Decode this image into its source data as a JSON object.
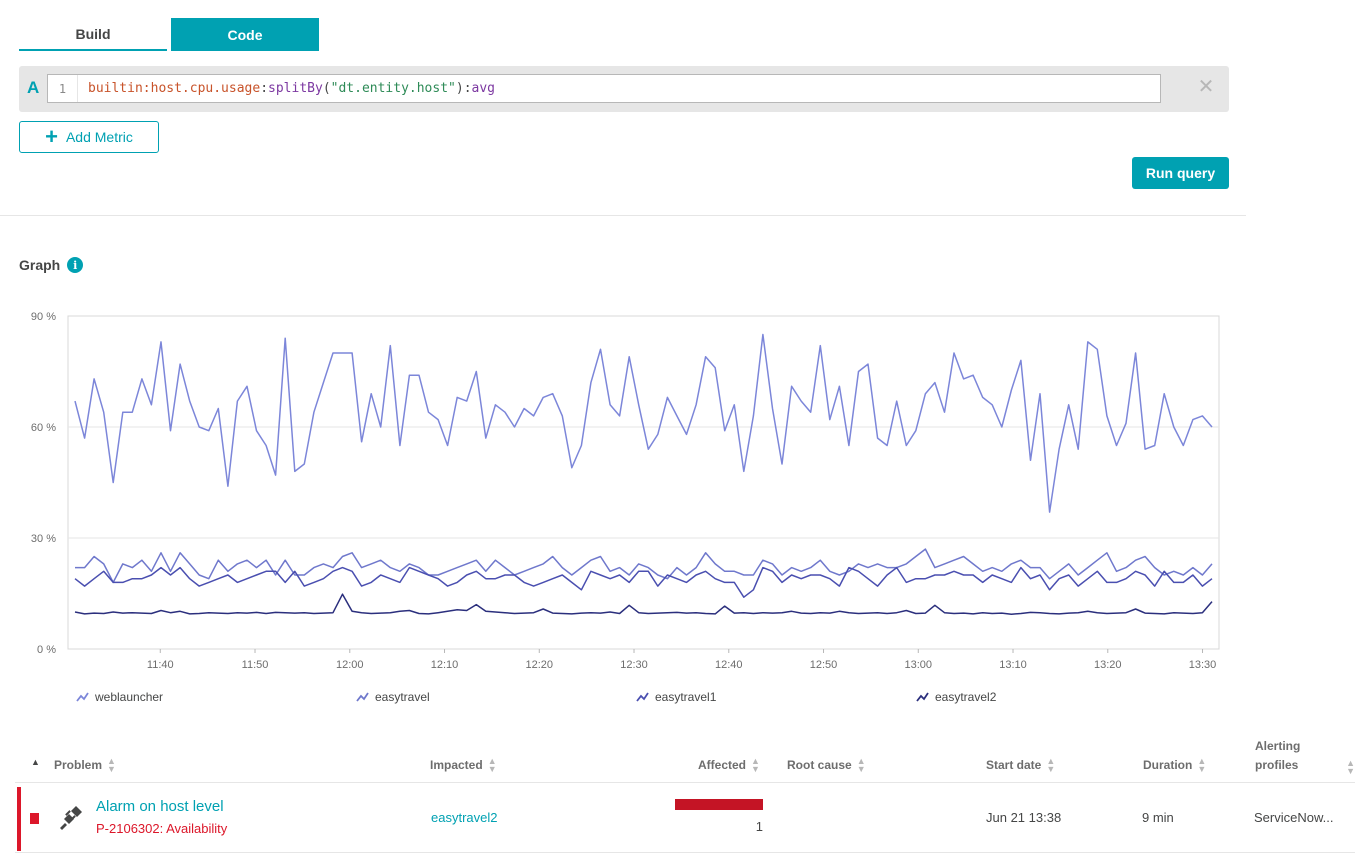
{
  "tabs": [
    {
      "label": "Build",
      "active": false
    },
    {
      "label": "Code",
      "active": true
    }
  ],
  "query": {
    "letter": "A",
    "line_number": "1",
    "metric": "builtin:host.cpu.usage",
    "sep1": ":",
    "fn1": "splitBy",
    "open": "(",
    "arg": "\"dt.entity.host\"",
    "close": ")",
    "sep2": ":",
    "fn2": "avg",
    "close_icon": "close-icon"
  },
  "add_metric_label": "Add Metric",
  "run_query_label": "Run query",
  "graph": {
    "title": "Graph",
    "info_icon": "info-icon"
  },
  "chart_data": {
    "type": "line",
    "ylim": [
      0,
      90
    ],
    "y_ticks": [
      "0 %",
      "30 %",
      "60 %",
      "90 %"
    ],
    "y_tick_values": [
      0,
      30,
      60,
      90
    ],
    "x_ticks": [
      "11:40",
      "11:50",
      "12:00",
      "12:10",
      "12:20",
      "12:30",
      "12:40",
      "12:50",
      "13:00",
      "13:10",
      "13:20",
      "13:30"
    ],
    "x_start": "11:31",
    "x_end": "13:31",
    "grid": true,
    "legend_position": "bottom",
    "series": [
      {
        "name": "weblauncher",
        "color": "#7c86d9",
        "values": [
          67,
          57,
          73,
          64,
          45,
          64,
          64,
          73,
          66,
          83,
          59,
          77,
          67,
          60,
          59,
          65,
          44,
          67,
          71,
          59,
          55,
          47,
          84,
          48,
          50,
          64,
          72,
          80,
          80,
          80,
          56,
          69,
          60,
          82,
          55,
          74,
          74,
          64,
          62,
          55,
          68,
          67,
          75,
          57,
          66,
          64,
          60,
          65,
          63,
          68,
          69,
          63,
          49,
          55,
          72,
          81,
          66,
          63,
          79,
          66,
          54,
          58,
          68,
          63,
          58,
          66,
          79,
          76,
          59,
          66,
          48,
          63,
          85,
          65,
          50,
          71,
          67,
          64,
          82,
          62,
          71,
          55,
          75,
          77,
          57,
          55,
          67,
          55,
          59,
          69,
          72,
          64,
          80,
          73,
          74,
          68,
          66,
          60,
          70,
          78,
          51,
          69,
          37,
          54,
          66,
          54,
          83,
          81,
          63,
          55,
          61,
          80,
          54,
          55,
          69,
          60,
          55,
          62,
          63,
          60
        ]
      },
      {
        "name": "easytravel",
        "color": "#6f78cc",
        "values": [
          22,
          22,
          25,
          23,
          18,
          23,
          22,
          24,
          21,
          26,
          21,
          26,
          23,
          20,
          19,
          24,
          21,
          23,
          24,
          22,
          24,
          20,
          24,
          20,
          20,
          22,
          23,
          22,
          25,
          26,
          22,
          23,
          24,
          22,
          21,
          23,
          22,
          20,
          20,
          21,
          22,
          23,
          24,
          21,
          24,
          22,
          20,
          21,
          22,
          23,
          25,
          22,
          20,
          22,
          24,
          25,
          21,
          22,
          20,
          23,
          22,
          20,
          19,
          22,
          20,
          22,
          26,
          23,
          21,
          21,
          20,
          20,
          24,
          23,
          20,
          22,
          21,
          22,
          24,
          21,
          20,
          21,
          23,
          22,
          23,
          22,
          22,
          23,
          25,
          27,
          22,
          23,
          24,
          25,
          23,
          21,
          22,
          21,
          23,
          24,
          22,
          22,
          19,
          21,
          23,
          20,
          22,
          24,
          26,
          21,
          22,
          24,
          25,
          22,
          20,
          21,
          20,
          22,
          20,
          23
        ]
      },
      {
        "name": "easytravel1",
        "color": "#4a4fb0",
        "values": [
          19,
          17,
          19,
          21,
          18,
          18,
          19,
          19,
          20,
          22,
          20,
          22,
          19,
          17,
          18,
          19,
          20,
          18,
          19,
          20,
          21,
          21,
          18,
          21,
          17,
          18,
          19,
          21,
          22,
          21,
          17,
          18,
          20,
          19,
          18,
          22,
          21,
          20,
          19,
          17,
          18,
          20,
          21,
          19,
          19,
          20,
          20,
          18,
          17,
          18,
          19,
          20,
          18,
          16,
          21,
          20,
          19,
          20,
          18,
          21,
          21,
          17,
          20,
          19,
          18,
          20,
          21,
          19,
          18,
          18,
          14,
          16,
          22,
          21,
          18,
          20,
          19,
          20,
          20,
          19,
          17,
          22,
          21,
          19,
          17,
          20,
          22,
          18,
          19,
          19,
          20,
          20,
          21,
          20,
          20,
          18,
          20,
          19,
          18,
          22,
          19,
          20,
          16,
          19,
          20,
          17,
          19,
          21,
          18,
          18,
          19,
          21,
          20,
          17,
          21,
          18,
          18,
          20,
          17,
          19
        ]
      },
      {
        "name": "easytravel2",
        "color": "#2b2f7d",
        "values": [
          10,
          9.5,
          9.7,
          9.6,
          10,
          9.7,
          9.8,
          9.7,
          9.6,
          10.4,
          9.8,
          10.2,
          9.5,
          9.6,
          9.8,
          9.7,
          9.6,
          9.8,
          9.7,
          9.9,
          9.6,
          9.9,
          9.8,
          9.7,
          9.8,
          9.6,
          9.7,
          9.8,
          14.8,
          10.2,
          9.8,
          9.6,
          9.7,
          9.8,
          10.2,
          10.4,
          9.6,
          9.5,
          9.8,
          10.2,
          10.6,
          10.4,
          12,
          10.2,
          10,
          9.8,
          9.6,
          9.7,
          9.8,
          10.8,
          9.7,
          9.6,
          9.5,
          9.7,
          9.8,
          9.7,
          10,
          9.6,
          11.8,
          9.8,
          9.6,
          9.7,
          9.8,
          9.9,
          9.7,
          9.8,
          9.6,
          9.5,
          11.6,
          9.7,
          9.8,
          9.6,
          9.8,
          9.7,
          9.8,
          10.2,
          9.7,
          9.6,
          9.8,
          9.7,
          10.2,
          9.8,
          9.6,
          9.7,
          9.8,
          9.6,
          9.8,
          10.4,
          9.6,
          9.7,
          11.8,
          9.8,
          9.6,
          9.7,
          9.5,
          9.8,
          9.6,
          9.7,
          9.4,
          9.6,
          9.9,
          9.8,
          9.6,
          9.5,
          9.7,
          9.8,
          10.2,
          9.8,
          9.6,
          9.7,
          9.8,
          10.8,
          9.7,
          9.6,
          9.5,
          9.8,
          9.7,
          9.6,
          9.8,
          12.8
        ]
      }
    ]
  },
  "table": {
    "headers": {
      "problem": "Problem",
      "impacted": "Impacted",
      "affected": "Affected",
      "root_cause": "Root cause",
      "start_date": "Start date",
      "duration": "Duration",
      "alerting_line1": "Alerting",
      "alerting_line2": "profiles"
    },
    "rows": [
      {
        "title": "Alarm on host level",
        "id": "P-2106302: Availability",
        "impacted": "easytravel2",
        "affected_count": "1",
        "affected_fraction": 1.0,
        "start_date": "Jun 21 13:38",
        "duration": "9 min",
        "alerting": "ServiceNow...",
        "icon": "plug-disconnected-icon",
        "severity_color": "#dc172a"
      }
    ]
  }
}
